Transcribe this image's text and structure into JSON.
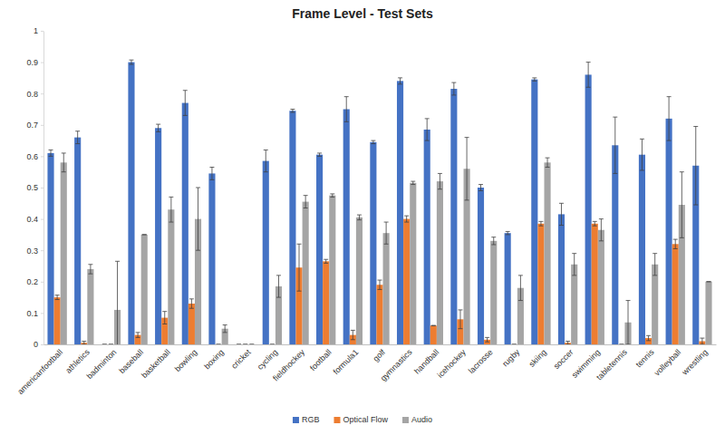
{
  "chart_data": {
    "type": "bar",
    "title": "Frame Level - Test Sets",
    "categories": [
      "americanfootball",
      "athletics",
      "badminton",
      "baseball",
      "basketball",
      "bowling",
      "boxing",
      "cricket",
      "cycling",
      "fieldhockey",
      "football",
      "formula1",
      "golf",
      "gymnastics",
      "handball",
      "icehockey",
      "lacrosse",
      "rugby",
      "skiing",
      "soccer",
      "swimming",
      "tabletennis",
      "tennis",
      "volleyball",
      "wrestling"
    ],
    "series": [
      {
        "name": "RGB",
        "color": "#4472c4",
        "values": [
          0.61,
          0.66,
          0,
          0.9,
          0.69,
          0.77,
          0.545,
          0,
          0.585,
          0.745,
          0.605,
          0.75,
          0.645,
          0.84,
          0.685,
          0.815,
          0.5,
          0.355,
          0.845,
          0.415,
          0.86,
          0.635,
          0.605,
          0.72,
          0.57
        ],
        "errors": [
          0.01,
          0.02,
          0,
          0.007,
          0.012,
          0.04,
          0.02,
          0,
          0.035,
          0.005,
          0.005,
          0.04,
          0.005,
          0.01,
          0.035,
          0.02,
          0.01,
          0.005,
          0.005,
          0.035,
          0.04,
          0.09,
          0.05,
          0.07,
          0.125
        ]
      },
      {
        "name": "Optical Flow",
        "color": "#ed7d31",
        "values": [
          0.15,
          0.005,
          0,
          0.03,
          0.085,
          0.13,
          0,
          0,
          0,
          0.245,
          0.265,
          0.03,
          0.19,
          0.4,
          0.06,
          0.08,
          0.015,
          0,
          0.385,
          0.005,
          0.385,
          0,
          0.02,
          0.32,
          0.01
        ],
        "errors": [
          0.007,
          0.005,
          0,
          0.008,
          0.02,
          0.015,
          0,
          0,
          0,
          0.075,
          0.006,
          0.015,
          0.015,
          0.01,
          0,
          0.03,
          0.007,
          0,
          0.007,
          0.005,
          0.007,
          0,
          0.008,
          0.015,
          0.01
        ]
      },
      {
        "name": "Audio",
        "color": "#a5a5a5",
        "values": [
          0.58,
          0.24,
          0.11,
          0.35,
          0.43,
          0.4,
          0.05,
          0,
          0.185,
          0.455,
          0.475,
          0.405,
          0.355,
          0.515,
          0.52,
          0.56,
          0.33,
          0.18,
          0.58,
          0.255,
          0.365,
          0.07,
          0.255,
          0.445,
          0.2
        ],
        "errors": [
          0.03,
          0.015,
          0.155,
          0,
          0.04,
          0.1,
          0.012,
          0,
          0.035,
          0.02,
          0.005,
          0.008,
          0.035,
          0.005,
          0.025,
          0.1,
          0.012,
          0.04,
          0.015,
          0.035,
          0.035,
          0.07,
          0.035,
          0.105,
          0
        ]
      }
    ],
    "ylim": [
      0,
      1
    ],
    "yticks": [
      0,
      0.1,
      0.2,
      0.3,
      0.4,
      0.5,
      0.6,
      0.7,
      0.8,
      0.9,
      1
    ],
    "grid": false,
    "legend": "bottom"
  }
}
